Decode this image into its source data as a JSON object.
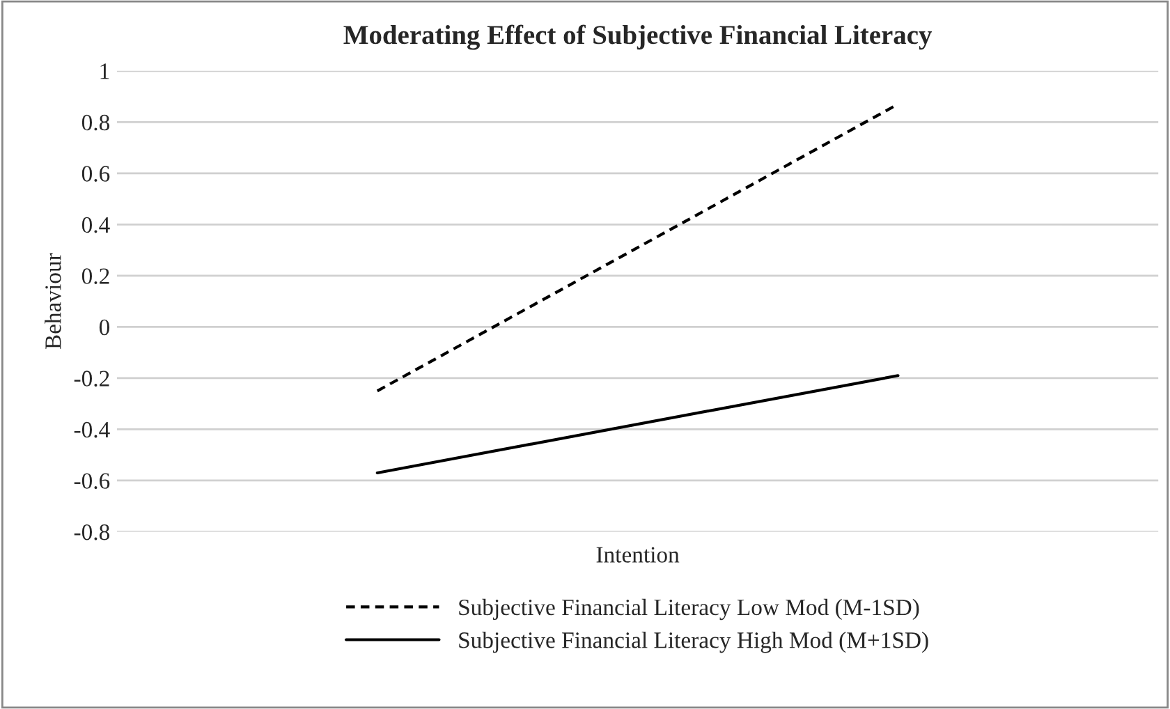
{
  "chart_data": {
    "type": "line",
    "title": "Moderating Effect of Subjective Financial Literacy",
    "xlabel": "Intention",
    "ylabel": "Behaviour",
    "categories": [
      null,
      null
    ],
    "series": [
      {
        "name": "Subjective Financial Literacy Low Mod (M-1SD)",
        "color": "#000000",
        "line_style": "dashed",
        "values": [
          -0.25,
          0.87
        ]
      },
      {
        "name": "Subjective Financial Literacy High Mod (M+1SD)",
        "color": "#000000",
        "line_style": "solid",
        "values": [
          -0.57,
          -0.19
        ]
      }
    ],
    "ylim": [
      -0.8,
      1
    ],
    "yticks": [
      -0.8,
      -0.6,
      -0.4,
      -0.2,
      0,
      0.2,
      0.4,
      0.6,
      0.8,
      1
    ],
    "grid": "y",
    "legend": "bottom",
    "marker": "none"
  }
}
